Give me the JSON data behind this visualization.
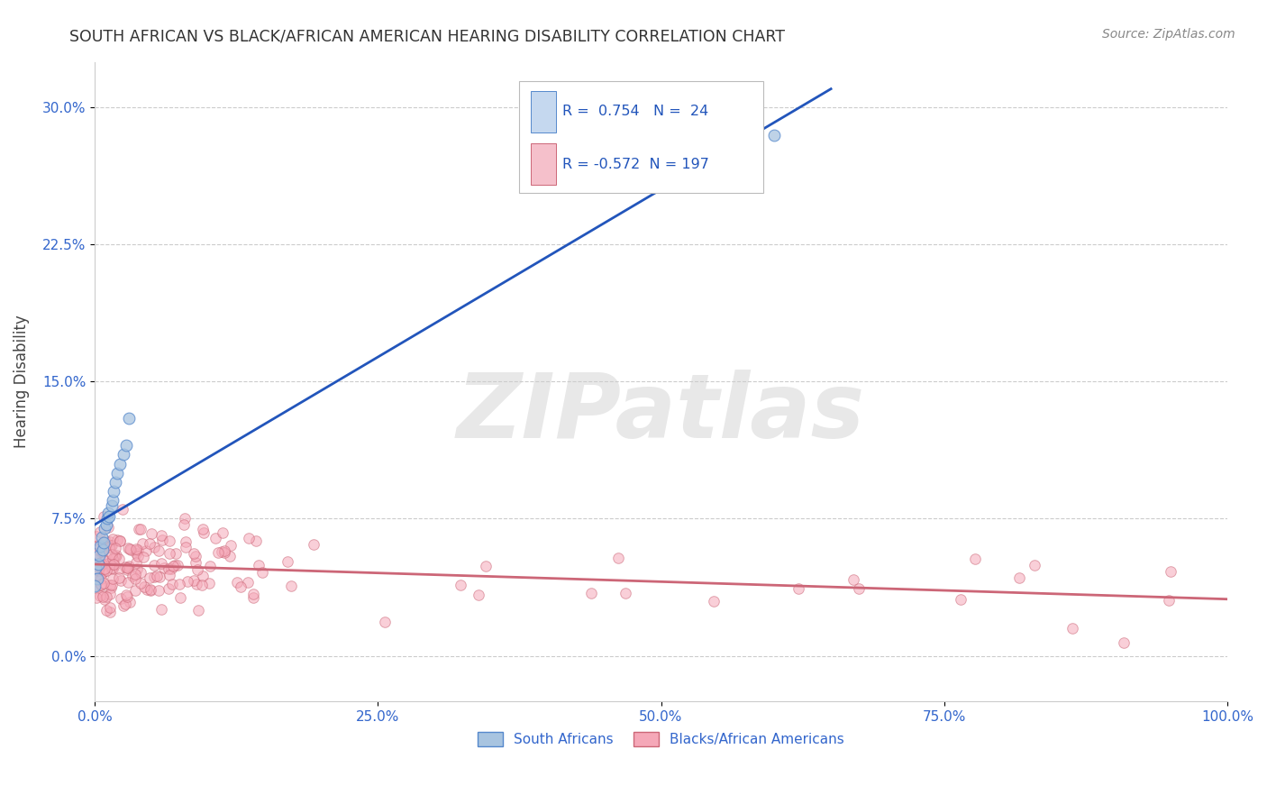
{
  "title": "SOUTH AFRICAN VS BLACK/AFRICAN AMERICAN HEARING DISABILITY CORRELATION CHART",
  "source": "Source: ZipAtlas.com",
  "ylabel": "Hearing Disability",
  "xlim": [
    0.0,
    1.0
  ],
  "ylim": [
    -0.025,
    0.325
  ],
  "yticks": [
    0.0,
    0.075,
    0.15,
    0.225,
    0.3
  ],
  "ytick_labels": [
    "0.0%",
    "7.5%",
    "15.0%",
    "22.5%",
    "30.0%"
  ],
  "xticks": [
    0.0,
    0.25,
    0.5,
    0.75,
    1.0
  ],
  "xtick_labels": [
    "0.0%",
    "25.0%",
    "50.0%",
    "75.0%",
    "100.0%"
  ],
  "blue_fill": "#a8c4e0",
  "blue_edge": "#5588cc",
  "blue_line": "#2255bb",
  "pink_fill": "#f5a8b8",
  "pink_edge": "#cc6677",
  "pink_line": "#cc6677",
  "R_blue": 0.754,
  "N_blue": 24,
  "R_pink": -0.572,
  "N_pink": 197,
  "blue_scatter_x": [
    0.001,
    0.002,
    0.003,
    0.004,
    0.005,
    0.006,
    0.007,
    0.008,
    0.009,
    0.01,
    0.011,
    0.012,
    0.013,
    0.015,
    0.016,
    0.017,
    0.018,
    0.02,
    0.022,
    0.025,
    0.028,
    0.03,
    0.0,
    0.6
  ],
  "blue_scatter_y": [
    0.048,
    0.042,
    0.05,
    0.055,
    0.06,
    0.065,
    0.058,
    0.062,
    0.07,
    0.072,
    0.075,
    0.078,
    0.076,
    0.082,
    0.085,
    0.09,
    0.095,
    0.1,
    0.105,
    0.11,
    0.115,
    0.13,
    0.038,
    0.285
  ],
  "pink_seed": 42,
  "watermark_text": "ZIPatlas",
  "legend_labels": [
    "South Africans",
    "Blacks/African Americans"
  ],
  "leg_box_blue": "#c5d8ef",
  "leg_box_pink": "#f5c0cb"
}
